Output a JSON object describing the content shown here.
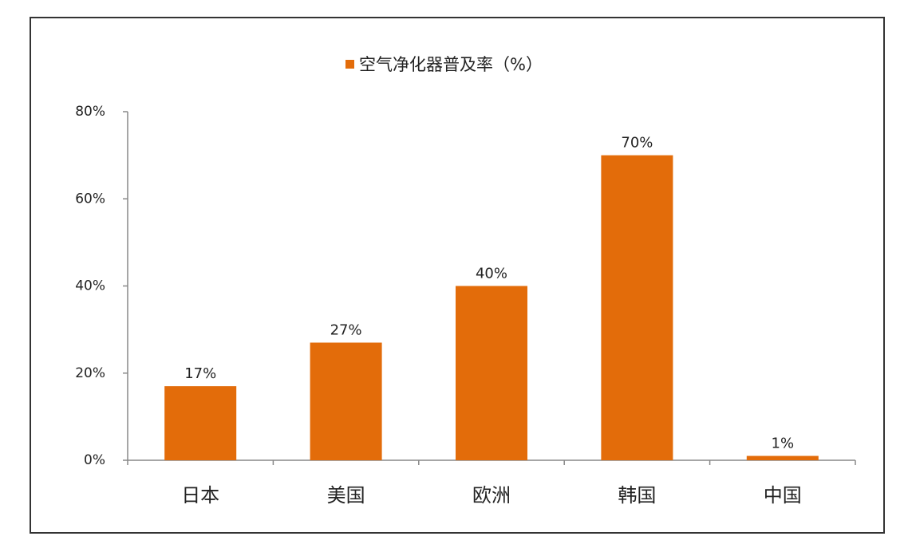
{
  "chart_data": {
    "type": "bar",
    "categories": [
      "日本",
      "美国",
      "欧洲",
      "韩国",
      "中国"
    ],
    "series": [
      {
        "name": "空气净化器普及率（%）",
        "color": "#e36c0a",
        "values": [
          17,
          27,
          40,
          70,
          1
        ],
        "value_labels": [
          "17%",
          "27%",
          "40%",
          "70%",
          "1%"
        ]
      }
    ],
    "ylim": [
      0,
      80
    ],
    "yticks": [
      {
        "value": 0,
        "label": "0%"
      },
      {
        "value": 20,
        "label": "20%"
      },
      {
        "value": 40,
        "label": "40%"
      },
      {
        "value": 60,
        "label": "60%"
      },
      {
        "value": 80,
        "label": "80%"
      }
    ],
    "legend": "top"
  }
}
